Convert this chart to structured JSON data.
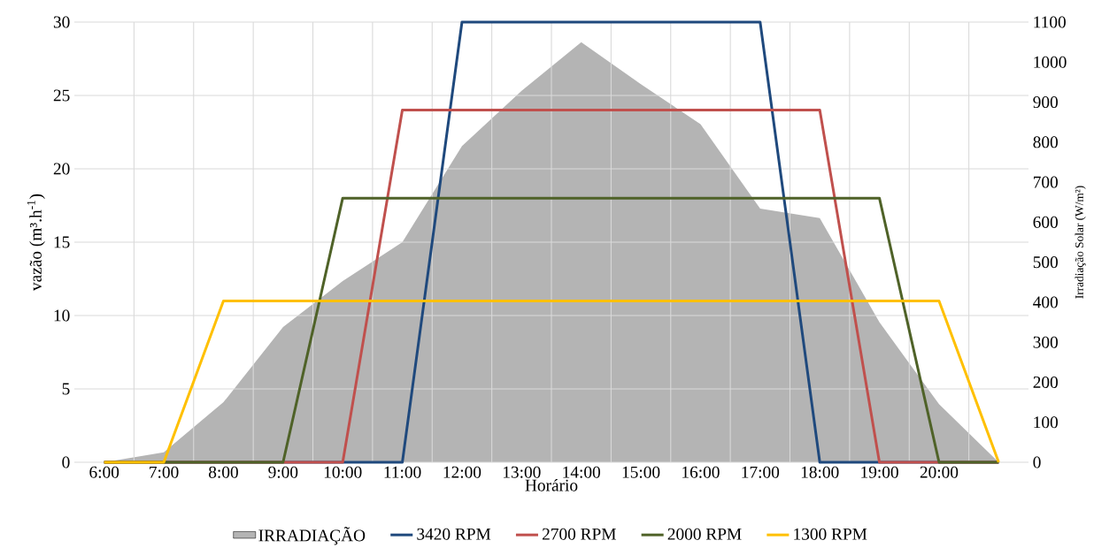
{
  "chart_data": {
    "type": "line",
    "categories": [
      "6:00",
      "7:00",
      "8:00",
      "9:00",
      "10:00",
      "11:00",
      "12:00",
      "13:00",
      "14:00",
      "15:00",
      "16:00",
      "17:00",
      "18:00",
      "19:00",
      "20:00",
      null
    ],
    "series": [
      {
        "name": "IRRADIAÇÃO",
        "type": "area",
        "axis": "y2",
        "color": "#b4b4b4",
        "values": [
          0,
          25,
          150,
          338,
          453,
          550,
          790,
          928,
          1050,
          945,
          845,
          634,
          610,
          350,
          145,
          0
        ]
      },
      {
        "name": "3420 RPM",
        "color": "#1f497d",
        "values": [
          0,
          0,
          0,
          0,
          0,
          0,
          30,
          30,
          30,
          30,
          30,
          30,
          0,
          0,
          0,
          0
        ]
      },
      {
        "name": "2700 RPM",
        "color": "#c0504d",
        "values": [
          0,
          0,
          0,
          0,
          0,
          24,
          24,
          24,
          24,
          24,
          24,
          24,
          24,
          0,
          0,
          0
        ]
      },
      {
        "name": "2000 RPM",
        "color": "#4f6228",
        "values": [
          0,
          0,
          0,
          0,
          18,
          18,
          18,
          18,
          18,
          18,
          18,
          18,
          18,
          18,
          0,
          0
        ]
      },
      {
        "name": "1300 RPM",
        "color": "#ffc000",
        "values": [
          0,
          0,
          11,
          11,
          11,
          11,
          11,
          11,
          11,
          11,
          11,
          11,
          11,
          11,
          11,
          0
        ]
      }
    ],
    "xlabel": "Horário",
    "ylabel": "vazão (m³.h$^{-1}$)",
    "y2label": "Irradiação Solar (W/m²)",
    "ylim": [
      0,
      30
    ],
    "yticks": [
      0,
      5,
      10,
      15,
      20,
      25,
      30
    ],
    "y2lim": [
      0,
      1100
    ],
    "y2ticks": [
      0,
      100,
      200,
      300,
      400,
      500,
      600,
      700,
      800,
      900,
      1000,
      1100
    ],
    "grid": true,
    "legend": "bottom"
  }
}
